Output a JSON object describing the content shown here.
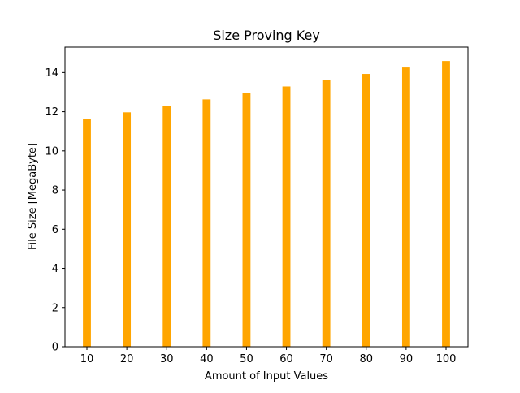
{
  "chart_data": {
    "type": "bar",
    "title": "Size Proving Key",
    "xlabel": "Amount of Input Values",
    "ylabel": "File Size [MegaByte]",
    "categories": [
      "10",
      "20",
      "30",
      "40",
      "50",
      "60",
      "70",
      "80",
      "90",
      "100"
    ],
    "values": [
      11.65,
      11.97,
      12.3,
      12.63,
      12.96,
      13.29,
      13.61,
      13.93,
      14.26,
      14.59
    ],
    "ylim": [
      0,
      15.3
    ],
    "yticks": [
      "0",
      "2",
      "4",
      "6",
      "8",
      "10",
      "12",
      "14"
    ],
    "grid": false,
    "legend": "none",
    "bar_color": "#ffa500"
  }
}
